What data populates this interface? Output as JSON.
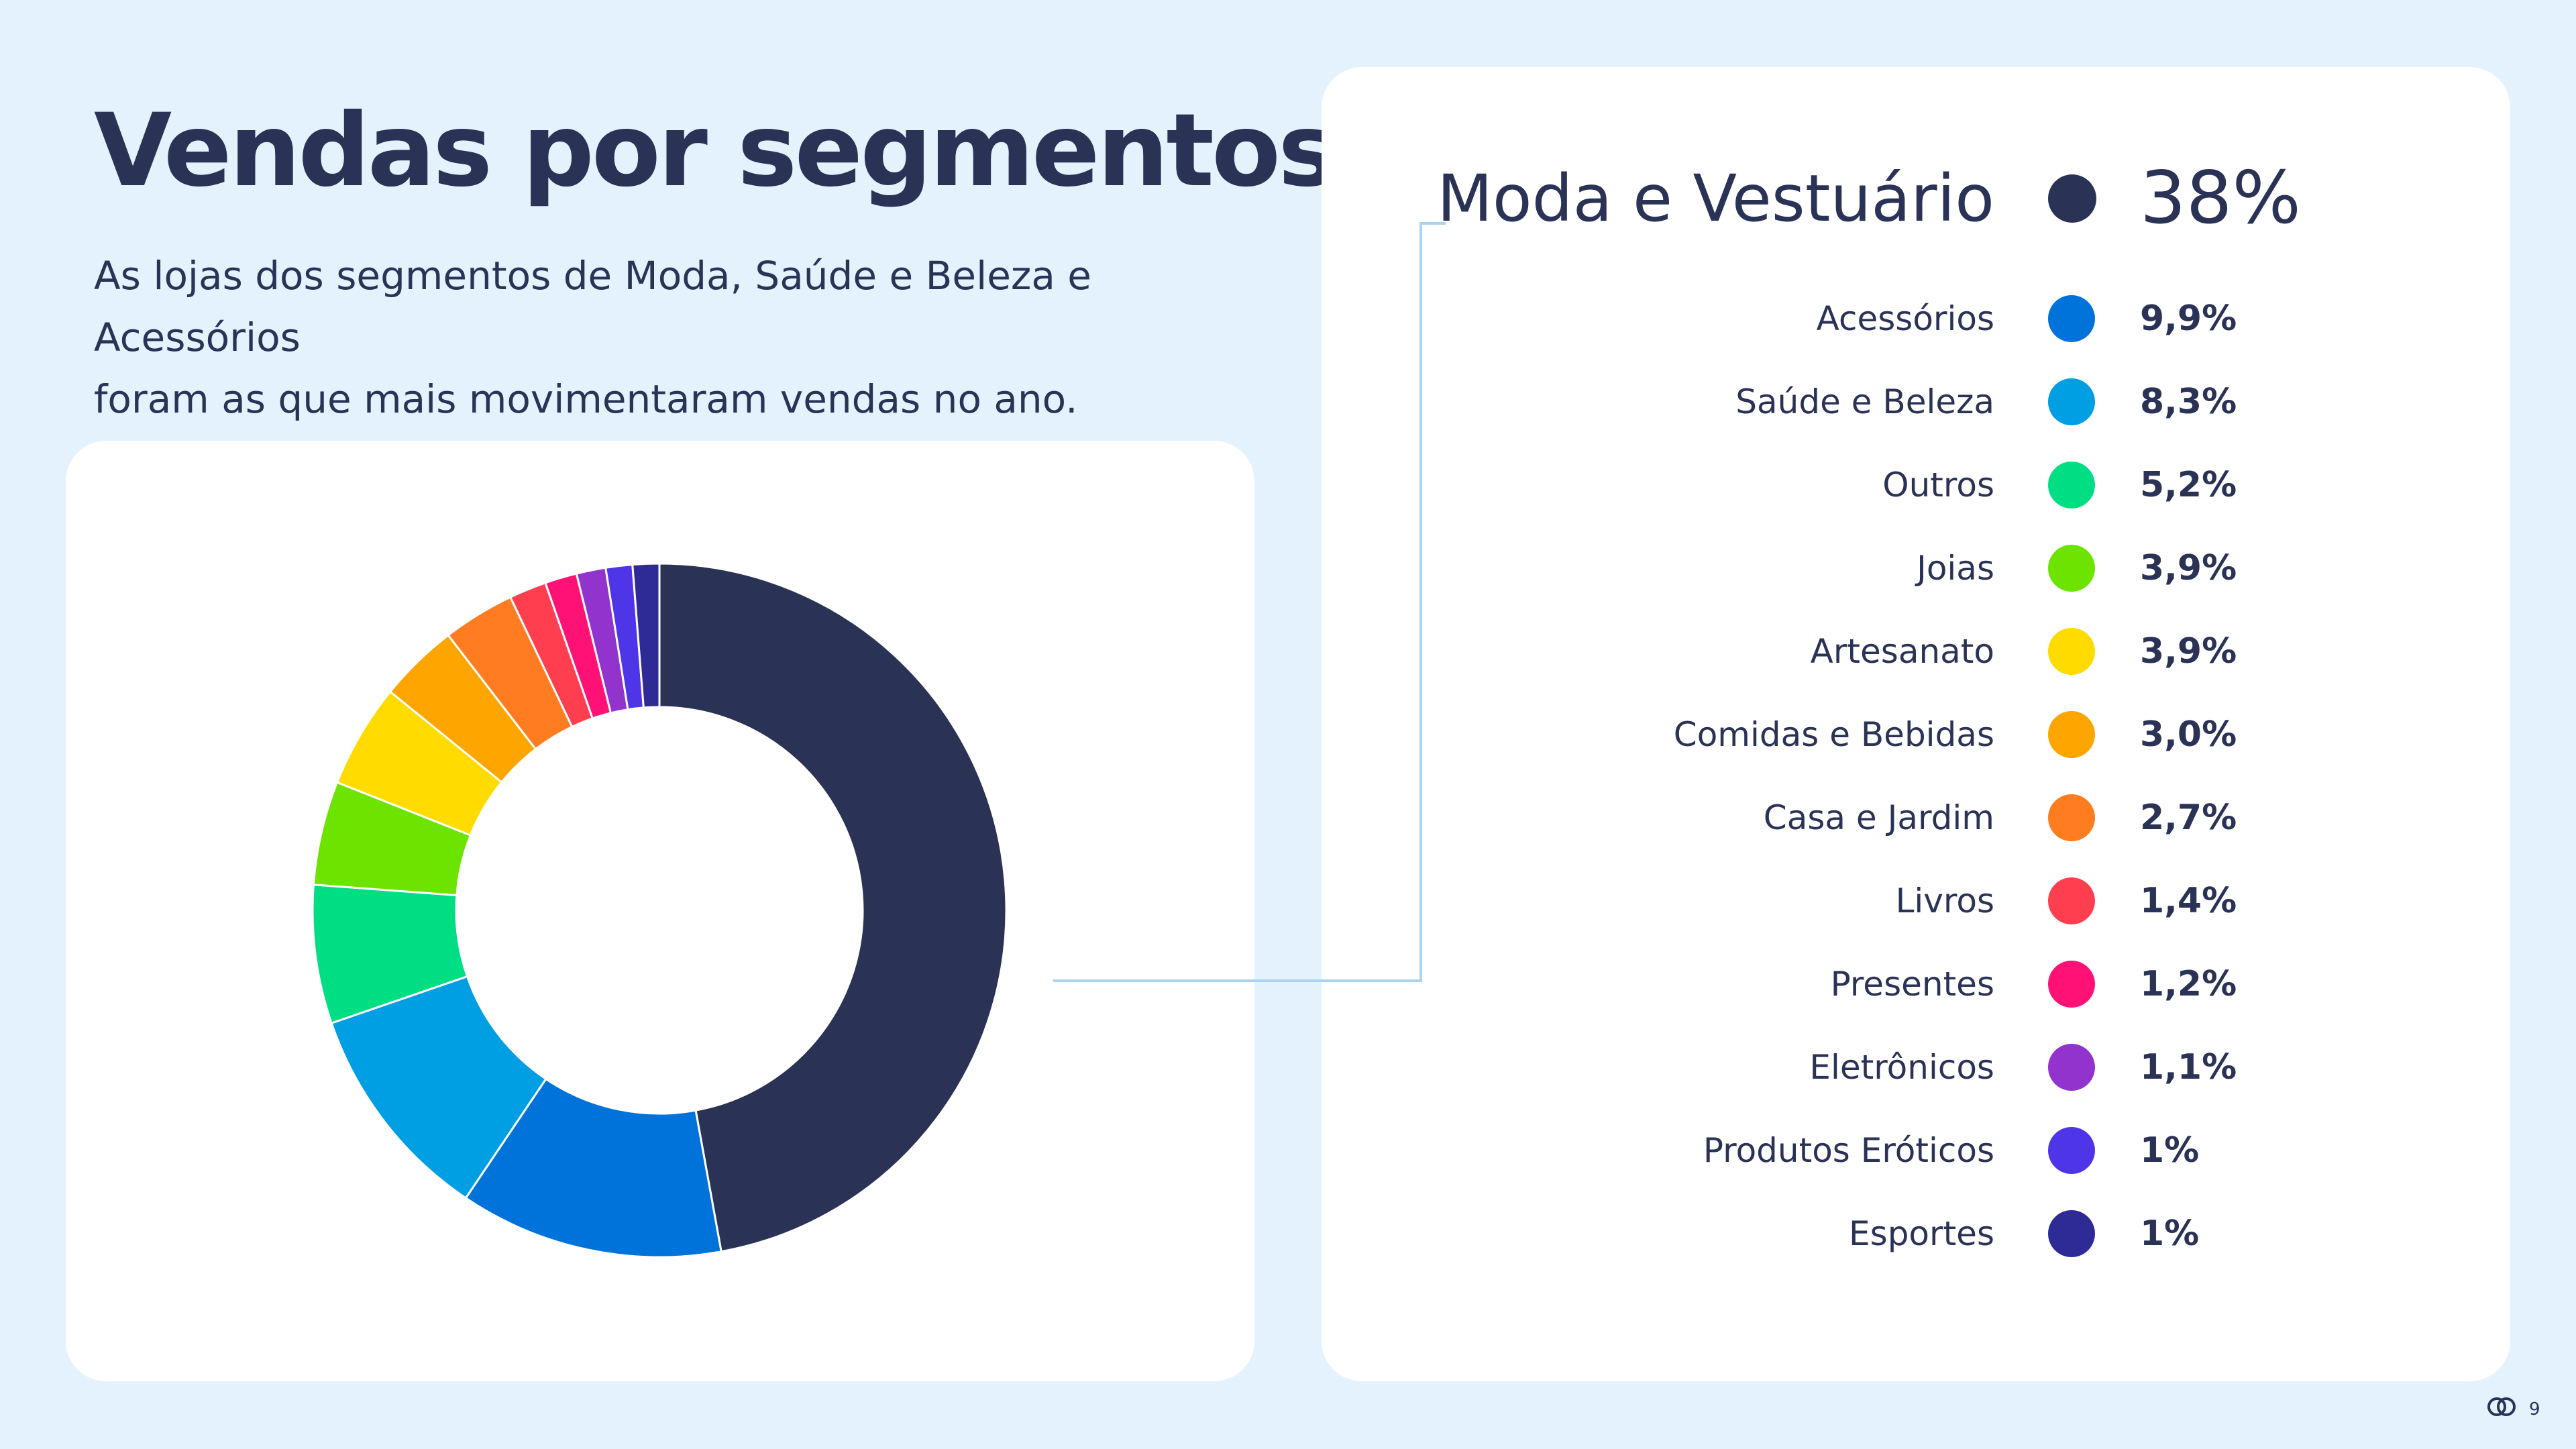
{
  "title": "Vendas por segmentos",
  "subtitle_line1": "As lojas dos segmentos de Moda, Saúde e Beleza e Acessórios",
  "subtitle_line2": "foram as que mais movimentaram vendas no ano.",
  "page_number": "9",
  "colors": {
    "background": "#E3F2FD",
    "card": "#FFFFFF",
    "text": "#2A3256",
    "connector": "#A9D4F5"
  },
  "chart_data": {
    "type": "pie",
    "style": "donut",
    "categories": [
      "Moda e Vestuário",
      "Acessórios",
      "Saúde e Beleza",
      "Outros",
      "Joias",
      "Artesanato",
      "Comidas e Bebidas",
      "Casa e Jardim",
      "Livros",
      "Presentes",
      "Eletrônicos",
      "Produtos Eróticos",
      "Esportes"
    ],
    "values": [
      38,
      9.9,
      8.3,
      5.2,
      3.9,
      3.9,
      3.0,
      2.7,
      1.4,
      1.2,
      1.1,
      1,
      1
    ],
    "value_labels": [
      "38%",
      "9,9%",
      "8,3%",
      "5,2%",
      "3,9%",
      "3,9%",
      "3,0%",
      "2,7%",
      "1,4%",
      "1,2%",
      "1,1%",
      "1%",
      "1%"
    ],
    "colors": [
      "#2A3256",
      "#0073DB",
      "#009EE3",
      "#00DE84",
      "#6DE300",
      "#FFDB00",
      "#FFA500",
      "#FF7C20",
      "#FF3F4F",
      "#FF1176",
      "#9233CE",
      "#4F35E8",
      "#2E2A96"
    ],
    "legend_position": "right",
    "highlighted": "Moda e Vestuário"
  }
}
